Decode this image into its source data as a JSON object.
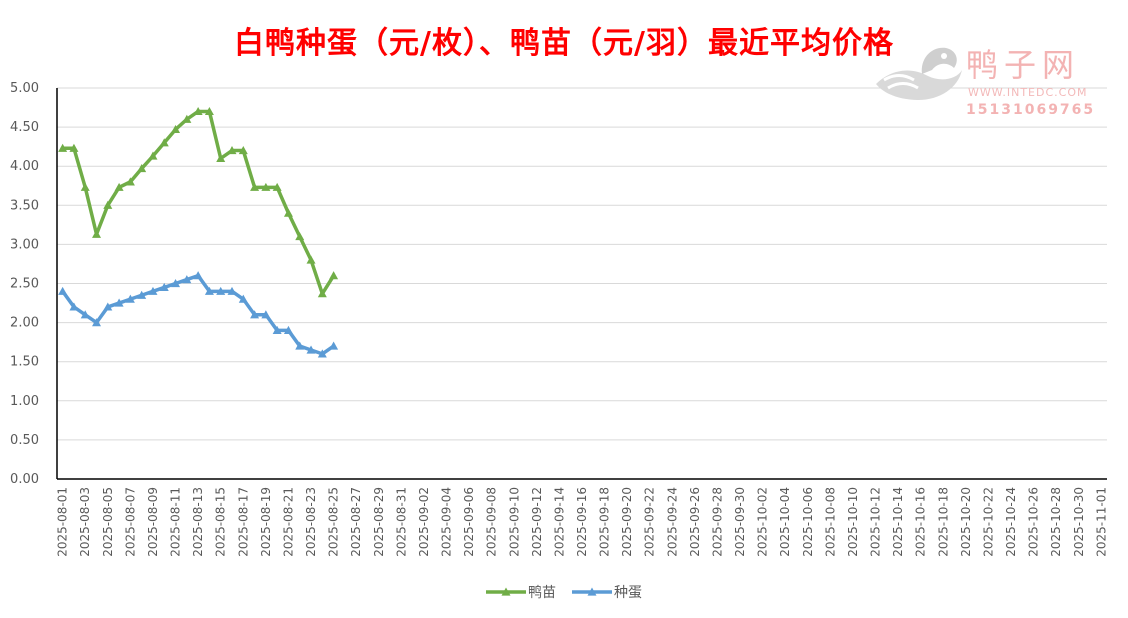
{
  "title": "白鸭种蛋（元/枚）、鸭苗（元/羽）最近平均价格",
  "watermark": {
    "brand": "鸭子网",
    "site": "WWW.INTEDC.COM",
    "phone": "15131069765"
  },
  "colors": {
    "title": "#ff0000",
    "series_duckling": "#70ad47",
    "series_egg": "#5b9bd5",
    "grid": "#d9d9d9",
    "axis": "#000000"
  },
  "chart_data": {
    "type": "line",
    "title": "白鸭种蛋（元/枚）、鸭苗（元/羽）最近平均价格",
    "xlabel": "",
    "ylabel": "",
    "ylim": [
      0,
      5
    ],
    "y_ticks": [
      "0.00",
      "0.50",
      "1.00",
      "1.50",
      "2.00",
      "2.50",
      "3.00",
      "3.50",
      "4.00",
      "4.50",
      "5.00"
    ],
    "x_start": "2025-08-01",
    "x_end": "2025-11-01",
    "x_tick_labels": [
      "2025-08-01",
      "2025-08-03",
      "2025-08-05",
      "2025-08-07",
      "2025-08-09",
      "2025-08-11",
      "2025-08-13",
      "2025-08-15",
      "2025-08-17",
      "2025-08-19",
      "2025-08-21",
      "2025-08-23",
      "2025-08-25",
      "2025-08-27",
      "2025-08-29",
      "2025-08-31",
      "2025-09-02",
      "2025-09-04",
      "2025-09-06",
      "2025-09-08",
      "2025-09-10",
      "2025-09-12",
      "2025-09-14",
      "2025-09-16",
      "2025-09-18",
      "2025-09-20",
      "2025-09-22",
      "2025-09-24",
      "2025-09-26",
      "2025-09-28",
      "2025-09-30",
      "2025-10-02",
      "2025-10-04",
      "2025-10-06",
      "2025-10-08",
      "2025-10-10",
      "2025-10-12",
      "2025-10-14",
      "2025-10-16",
      "2025-10-18",
      "2025-10-20",
      "2025-10-22",
      "2025-10-24",
      "2025-10-26",
      "2025-10-28",
      "2025-10-30",
      "2025-11-01"
    ],
    "legend_position": "bottom",
    "grid": true,
    "x": [
      "2025-08-01",
      "2025-08-02",
      "2025-08-03",
      "2025-08-04",
      "2025-08-05",
      "2025-08-06",
      "2025-08-07",
      "2025-08-08",
      "2025-08-09",
      "2025-08-10",
      "2025-08-11",
      "2025-08-12",
      "2025-08-13",
      "2025-08-14",
      "2025-08-15",
      "2025-08-16",
      "2025-08-17",
      "2025-08-18",
      "2025-08-19",
      "2025-08-20",
      "2025-08-21",
      "2025-08-22",
      "2025-08-23",
      "2025-08-24",
      "2025-08-25"
    ],
    "series": [
      {
        "name": "鸭苗",
        "color": "#70ad47",
        "values": [
          4.23,
          4.23,
          3.73,
          3.13,
          3.5,
          3.73,
          3.8,
          3.97,
          4.13,
          4.3,
          4.47,
          4.6,
          4.7,
          4.7,
          4.1,
          4.2,
          4.2,
          3.73,
          3.73,
          3.73,
          3.4,
          3.1,
          2.8,
          2.37,
          2.6
        ]
      },
      {
        "name": "种蛋",
        "color": "#5b9bd5",
        "values": [
          2.4,
          2.2,
          2.1,
          2.0,
          2.2,
          2.25,
          2.3,
          2.35,
          2.4,
          2.45,
          2.5,
          2.55,
          2.6,
          2.4,
          2.4,
          2.4,
          2.3,
          2.1,
          2.1,
          1.9,
          1.9,
          1.7,
          1.65,
          1.6,
          1.7
        ]
      }
    ]
  }
}
